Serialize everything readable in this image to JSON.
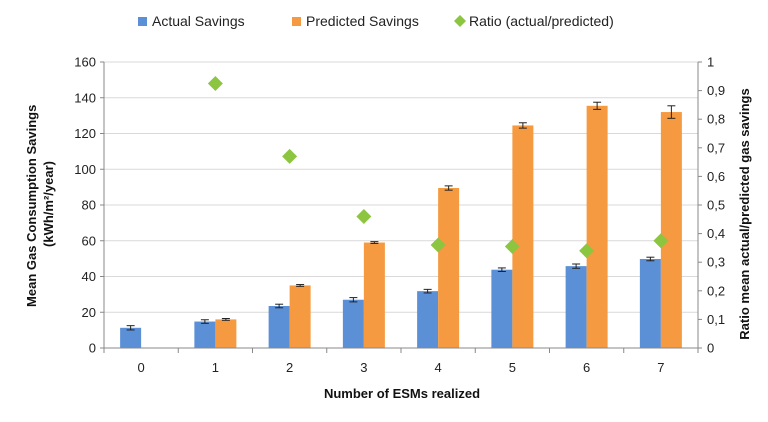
{
  "chart_data": {
    "type": "bar",
    "xlabel": "Number of ESMs realized",
    "ylabel_lines": [
      "Mean Gas Consumption Savings",
      "(kWh/m²/year)"
    ],
    "y2label": "Ratio mean actual/predicted gas savings",
    "ylim": [
      0,
      160
    ],
    "y_ticks": [
      "0",
      "20",
      "40",
      "60",
      "80",
      "100",
      "120",
      "140",
      "160"
    ],
    "y2lim": [
      0,
      1
    ],
    "y2_ticks": [
      "0",
      "0,1",
      "0,2",
      "0,3",
      "0,4",
      "0,5",
      "0,6",
      "0,7",
      "0,8",
      "0,9",
      "1"
    ],
    "categories": [
      "0",
      "1",
      "2",
      "3",
      "4",
      "5",
      "6",
      "7"
    ],
    "grid": true,
    "legend_position": "top",
    "colors": {
      "actual": "#5B8FD6",
      "predicted": "#F59A40",
      "ratio": "#8CC641",
      "grid": "#D9D9D9"
    },
    "series": [
      {
        "name": "Actual Savings",
        "type": "bar",
        "axis": "left",
        "values": [
          11.3,
          14.8,
          23.5,
          27.0,
          31.8,
          43.8,
          45.8,
          49.8
        ],
        "errors": [
          1.2,
          1.0,
          1.0,
          1.2,
          1.0,
          1.0,
          1.2,
          1.0
        ]
      },
      {
        "name": "Predicted Savings",
        "type": "bar",
        "axis": "left",
        "values": [
          null,
          16.0,
          35.0,
          59.0,
          89.5,
          124.5,
          135.5,
          132.0
        ],
        "errors": [
          null,
          0.5,
          0.5,
          0.5,
          1.2,
          1.5,
          2.0,
          3.5
        ]
      },
      {
        "name": "Ratio (actual/predicted)",
        "type": "scatter",
        "axis": "right",
        "values": [
          null,
          0.925,
          0.67,
          0.46,
          0.36,
          0.355,
          0.34,
          0.375
        ]
      }
    ]
  }
}
